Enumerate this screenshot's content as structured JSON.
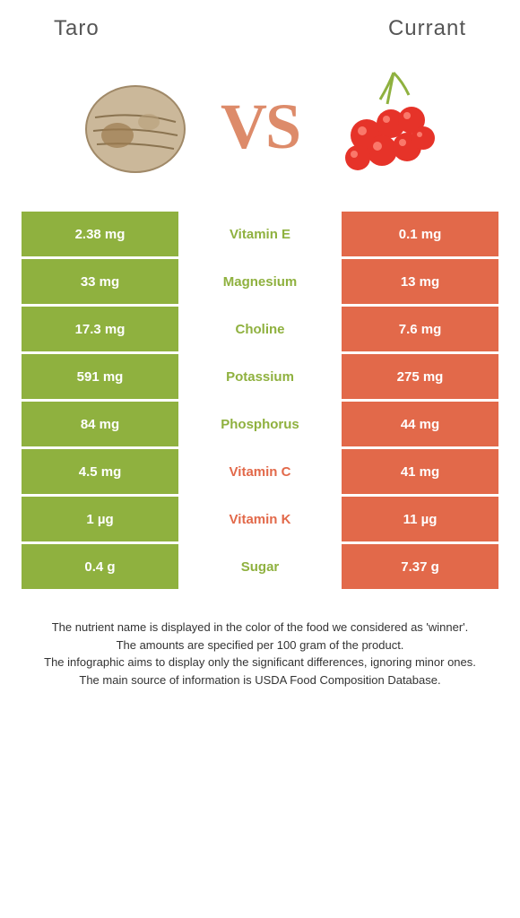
{
  "colors": {
    "left": "#8fb13f",
    "right": "#e2694a",
    "text_winner_left": "#8fb13f",
    "text_winner_right": "#e2694a"
  },
  "header": {
    "left_title": "Taro",
    "right_title": "Currant",
    "vs": "VS"
  },
  "rows": [
    {
      "left": "2.38 mg",
      "label": "Vitamin E",
      "right": "0.1 mg",
      "winner": "left"
    },
    {
      "left": "33 mg",
      "label": "Magnesium",
      "right": "13 mg",
      "winner": "left"
    },
    {
      "left": "17.3 mg",
      "label": "Choline",
      "right": "7.6 mg",
      "winner": "left"
    },
    {
      "left": "591 mg",
      "label": "Potassium",
      "right": "275 mg",
      "winner": "left"
    },
    {
      "left": "84 mg",
      "label": "Phosphorus",
      "right": "44 mg",
      "winner": "left"
    },
    {
      "left": "4.5 mg",
      "label": "Vitamin C",
      "right": "41 mg",
      "winner": "right"
    },
    {
      "left": "1 µg",
      "label": "Vitamin K",
      "right": "11 µg",
      "winner": "right"
    },
    {
      "left": "0.4 g",
      "label": "Sugar",
      "right": "7.37 g",
      "winner": "left"
    }
  ],
  "footer": {
    "line1": "The nutrient name is displayed in the color of the food we considered as 'winner'.",
    "line2": "The amounts are specified per 100 gram of the product.",
    "line3": "The infographic aims to display only the significant differences, ignoring minor ones.",
    "line4": "The main source of information is USDA Food Composition Database."
  }
}
